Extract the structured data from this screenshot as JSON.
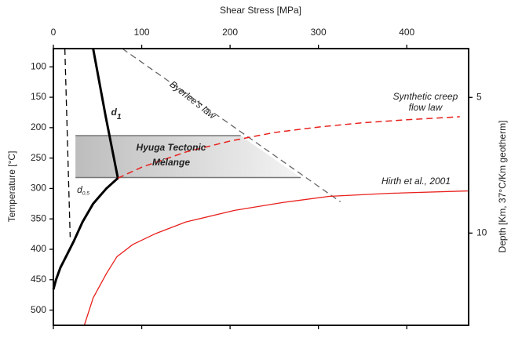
{
  "chart_data": {
    "type": "line",
    "xlabel": "Shear Stress [MPa]",
    "ylabel": "Temperature [°C]",
    "y2label": "Depth [Km, 37°C/Km geotherm]",
    "xlim": [
      0,
      470
    ],
    "xticks": [
      0,
      100,
      200,
      300,
      400
    ],
    "ylim": [
      70,
      525
    ],
    "yticks": [
      100,
      150,
      200,
      250,
      300,
      350,
      400,
      450,
      500
    ],
    "y_inverted": true,
    "y2lim": [
      3.2,
      13.4
    ],
    "y2ticks": [
      5,
      10
    ],
    "region": {
      "x": [
        25,
        212,
        280,
        25
      ],
      "y": [
        213,
        213,
        282,
        282
      ],
      "color": "#c8c8c8",
      "edge": "#777777"
    },
    "series": [
      {
        "x": [
          45,
          59,
          73,
          60,
          45,
          33,
          23,
          15,
          8,
          3,
          0
        ],
        "y": [
          70,
          180,
          283,
          300,
          325,
          355,
          387,
          410,
          430,
          450,
          466
        ],
        "color": "#000000",
        "dash": "solid",
        "width": 3
      },
      {
        "x": [
          13,
          19
        ],
        "y": [
          70,
          380
        ],
        "color": "#000000",
        "dash": "dashed",
        "width": 1.3
      },
      {
        "x": [
          78,
          325
        ],
        "y": [
          70,
          322
        ],
        "color": "#666666",
        "dash": "dashed",
        "width": 1.3
      },
      {
        "x": [
          73,
          100,
          150,
          200,
          250,
          300,
          350,
          400,
          460
        ],
        "y": [
          283,
          265,
          240,
          222,
          208,
          199,
          192,
          187,
          182
        ],
        "color": "#e8201c",
        "dash": "dashed",
        "width": 1.5
      },
      {
        "x": [
          35,
          45,
          60,
          72,
          90,
          116,
          150,
          205,
          260,
          312,
          380,
          469
        ],
        "y": [
          525,
          480,
          440,
          412,
          392,
          374,
          355,
          336,
          323,
          313,
          308,
          304
        ],
        "color": "#e8201c",
        "dash": "solid",
        "width": 1.3
      }
    ],
    "annotations": [
      {
        "text": "Byerlee's law"
      },
      {
        "lines": [
          "Synthetic creep",
          "flow law"
        ]
      },
      {
        "text": "d",
        "sub": "1"
      },
      {
        "text": "d",
        "sub": "0,5"
      },
      {
        "text": "Hirth et al., 2001"
      },
      {
        "lines": [
          "Hyuga Tectonic",
          "Mélange"
        ]
      }
    ]
  }
}
